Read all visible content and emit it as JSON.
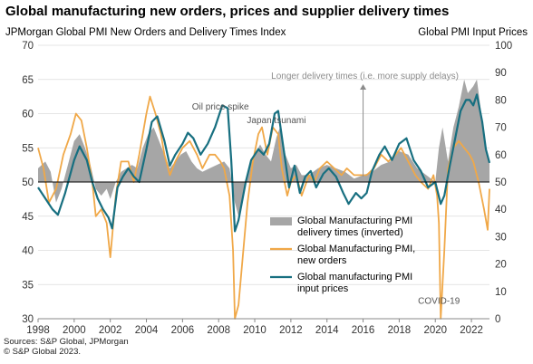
{
  "header": {
    "title": "Global manufacturing new orders, prices and supplier delivery times",
    "left_axis_title": "JPMorgan Global PMI New Orders and Delivery Times Index",
    "right_axis_title": "Global PMI Input Prices"
  },
  "footer": {
    "source_line1": "Sources: S&P Global, JPMorgan",
    "source_line2": "© S&P Global 2023."
  },
  "colors": {
    "delivery": "#a6a6a6",
    "new_orders": "#f0a848",
    "input_prices": "#176f80",
    "grid": "#dcdcdc",
    "annotation": "#8c8c8c"
  },
  "chart_data": {
    "type": "line",
    "title": "Global manufacturing new orders, prices and supplier delivery times",
    "x_ticks": [
      "1998",
      "2000",
      "2002",
      "2004",
      "2006",
      "2008",
      "2010",
      "2012",
      "2014",
      "2016",
      "2018",
      "2020",
      "2022"
    ],
    "xlim": [
      1998,
      2023
    ],
    "y_left": {
      "label": "JPMorgan Global PMI New Orders and Delivery Times Index",
      "lim": [
        30,
        70
      ],
      "ticks": [
        "30",
        "35",
        "40",
        "45",
        "50",
        "55",
        "60",
        "65",
        "70"
      ],
      "baseline": 50
    },
    "y_right": {
      "label": "Global PMI Input Prices",
      "lim": [
        0,
        100
      ],
      "ticks": [
        "0",
        "10",
        "20",
        "30",
        "40",
        "50",
        "60",
        "70",
        "80",
        "90",
        "100"
      ]
    },
    "legend": [
      {
        "text": "Global Manufacturing PMI delivery times (inverted)",
        "line1": "Global Manufacturing PMI",
        "line2": "delivery times (inverted)",
        "key": "delivery"
      },
      {
        "text": "Global Manufacturing PMI, new orders",
        "line1": "Global Manufacturing PMI,",
        "line2": "new orders",
        "key": "new_orders"
      },
      {
        "text": "Global manufacturing PMI input prices",
        "line1": "Global manufacturing PMI",
        "line2": "input prices",
        "key": "input_prices"
      }
    ],
    "annotations": [
      {
        "text": "Longer delivery times  (i.e. more supply delays)",
        "x": 2016,
        "y": 65.5,
        "arrow": true
      },
      {
        "text": "Oil price spike",
        "x": 2008.1,
        "y": 60.6
      },
      {
        "text": "Japan tsunami",
        "x": 2011.2,
        "y": 58.6
      },
      {
        "text": "COVID-19",
        "x": 2020.2,
        "y": 32.2
      }
    ],
    "series": [
      {
        "name": "Global Manufacturing PMI delivery times (inverted)",
        "type": "area",
        "axis": "left",
        "points": [
          [
            1998,
            52
          ],
          [
            1998.4,
            53
          ],
          [
            1998.7,
            51.5
          ],
          [
            1999,
            47
          ],
          [
            1999.3,
            49
          ],
          [
            1999.7,
            53
          ],
          [
            2000,
            56
          ],
          [
            2000.3,
            57
          ],
          [
            2000.6,
            55
          ],
          [
            2000.9,
            52.5
          ],
          [
            2001.2,
            49
          ],
          [
            2001.5,
            48
          ],
          [
            2001.8,
            49
          ],
          [
            2002,
            47.5
          ],
          [
            2002.3,
            50
          ],
          [
            2002.6,
            51.5
          ],
          [
            2002.9,
            52
          ],
          [
            2003.2,
            52.5
          ],
          [
            2003.5,
            52
          ],
          [
            2003.8,
            55
          ],
          [
            2004.1,
            57
          ],
          [
            2004.4,
            58
          ],
          [
            2004.7,
            56
          ],
          [
            2005,
            54
          ],
          [
            2005.3,
            52
          ],
          [
            2005.6,
            53
          ],
          [
            2005.9,
            54
          ],
          [
            2006.2,
            54.5
          ],
          [
            2006.5,
            53
          ],
          [
            2006.8,
            52
          ],
          [
            2007.1,
            51.5
          ],
          [
            2007.5,
            52
          ],
          [
            2007.9,
            52.5
          ],
          [
            2008.3,
            53
          ],
          [
            2008.6,
            52
          ],
          [
            2008.9,
            47
          ],
          [
            2009.1,
            45
          ],
          [
            2009.4,
            49
          ],
          [
            2009.7,
            52
          ],
          [
            2010.0,
            54
          ],
          [
            2010.3,
            55.5
          ],
          [
            2010.6,
            54
          ],
          [
            2010.9,
            53
          ],
          [
            2011.2,
            56.5
          ],
          [
            2011.4,
            58
          ],
          [
            2011.7,
            54
          ],
          [
            2012,
            52
          ],
          [
            2012.3,
            52.5
          ],
          [
            2012.6,
            51
          ],
          [
            2013,
            51
          ],
          [
            2013.5,
            52
          ],
          [
            2014,
            52.5
          ],
          [
            2014.5,
            52
          ],
          [
            2015,
            51.5
          ],
          [
            2015.5,
            50.5
          ],
          [
            2016,
            51
          ],
          [
            2016.5,
            51.5
          ],
          [
            2017,
            52.5
          ],
          [
            2017.5,
            53
          ],
          [
            2018,
            54.5
          ],
          [
            2018.5,
            54
          ],
          [
            2019,
            52
          ],
          [
            2019.5,
            51
          ],
          [
            2020,
            50
          ],
          [
            2020.2,
            55
          ],
          [
            2020.4,
            58
          ],
          [
            2020.7,
            53
          ],
          [
            2021,
            58
          ],
          [
            2021.3,
            61
          ],
          [
            2021.6,
            65
          ],
          [
            2021.8,
            63
          ],
          [
            2022.1,
            64
          ],
          [
            2022.3,
            65
          ],
          [
            2022.6,
            59
          ],
          [
            2022.8,
            55
          ],
          [
            2023,
            53
          ]
        ]
      },
      {
        "name": "Global Manufacturing PMI, new orders",
        "type": "line",
        "axis": "left",
        "points": [
          [
            1998,
            55
          ],
          [
            1998.3,
            52
          ],
          [
            1998.6,
            47
          ],
          [
            1999,
            49
          ],
          [
            1999.4,
            54
          ],
          [
            1999.8,
            57
          ],
          [
            2000.1,
            60
          ],
          [
            2000.4,
            59
          ],
          [
            2000.7,
            55
          ],
          [
            2001,
            50
          ],
          [
            2001.2,
            45
          ],
          [
            2001.5,
            46
          ],
          [
            2001.8,
            44
          ],
          [
            2002,
            39
          ],
          [
            2002.3,
            48
          ],
          [
            2002.6,
            53
          ],
          [
            2003,
            53
          ],
          [
            2003.3,
            50
          ],
          [
            2003.6,
            54
          ],
          [
            2004,
            60
          ],
          [
            2004.2,
            62.5
          ],
          [
            2004.5,
            60
          ],
          [
            2004.8,
            57
          ],
          [
            2005,
            54
          ],
          [
            2005.3,
            51
          ],
          [
            2005.6,
            53
          ],
          [
            2006,
            55
          ],
          [
            2006.4,
            56
          ],
          [
            2006.8,
            54
          ],
          [
            2007.1,
            52
          ],
          [
            2007.5,
            54
          ],
          [
            2007.8,
            54
          ],
          [
            2008.1,
            53
          ],
          [
            2008.3,
            52
          ],
          [
            2008.6,
            48
          ],
          [
            2008.8,
            40
          ],
          [
            2008.9,
            30
          ],
          [
            2009.1,
            32
          ],
          [
            2009.3,
            38
          ],
          [
            2009.6,
            47
          ],
          [
            2009.9,
            53
          ],
          [
            2010.2,
            57
          ],
          [
            2010.4,
            58
          ],
          [
            2010.7,
            54
          ],
          [
            2011,
            58
          ],
          [
            2011.3,
            57
          ],
          [
            2011.5,
            52
          ],
          [
            2011.8,
            48
          ],
          [
            2012,
            50
          ],
          [
            2012.3,
            51
          ],
          [
            2012.6,
            48
          ],
          [
            2013,
            51
          ],
          [
            2013.3,
            50
          ],
          [
            2013.6,
            52
          ],
          [
            2014,
            53
          ],
          [
            2014.4,
            52
          ],
          [
            2014.8,
            51
          ],
          [
            2015.1,
            52
          ],
          [
            2015.5,
            51
          ],
          [
            2015.9,
            51
          ],
          [
            2016.2,
            51
          ],
          [
            2016.6,
            52
          ],
          [
            2017,
            54
          ],
          [
            2017.4,
            53
          ],
          [
            2017.8,
            54
          ],
          [
            2018.1,
            55
          ],
          [
            2018.5,
            53
          ],
          [
            2018.9,
            51
          ],
          [
            2019.2,
            50
          ],
          [
            2019.6,
            49
          ],
          [
            2019.9,
            51
          ],
          [
            2020.1,
            48
          ],
          [
            2020.2,
            44
          ],
          [
            2020.3,
            30
          ],
          [
            2020.5,
            40
          ],
          [
            2020.7,
            52
          ],
          [
            2021,
            55
          ],
          [
            2021.3,
            56
          ],
          [
            2021.6,
            55
          ],
          [
            2021.9,
            54
          ],
          [
            2022.1,
            53
          ],
          [
            2022.4,
            50
          ],
          [
            2022.7,
            46
          ],
          [
            2022.9,
            43
          ],
          [
            2023,
            49
          ]
        ]
      },
      {
        "name": "Global manufacturing PMI input prices",
        "type": "line",
        "axis": "right",
        "points": [
          [
            1998,
            48
          ],
          [
            1998.4,
            44
          ],
          [
            1998.8,
            40
          ],
          [
            1999.1,
            38
          ],
          [
            1999.5,
            46
          ],
          [
            2000,
            58
          ],
          [
            2000.3,
            63
          ],
          [
            2000.7,
            58
          ],
          [
            2001,
            50
          ],
          [
            2001.3,
            44
          ],
          [
            2001.6,
            40
          ],
          [
            2001.9,
            37
          ],
          [
            2002.1,
            33
          ],
          [
            2002.4,
            48
          ],
          [
            2002.7,
            52
          ],
          [
            2003,
            55
          ],
          [
            2003.3,
            52
          ],
          [
            2003.6,
            50
          ],
          [
            2004,
            62
          ],
          [
            2004.3,
            72
          ],
          [
            2004.6,
            74
          ],
          [
            2005,
            65
          ],
          [
            2005.3,
            56
          ],
          [
            2005.6,
            60
          ],
          [
            2006,
            64
          ],
          [
            2006.3,
            68
          ],
          [
            2006.6,
            66
          ],
          [
            2007,
            60
          ],
          [
            2007.4,
            64
          ],
          [
            2007.8,
            70
          ],
          [
            2008.2,
            78
          ],
          [
            2008.5,
            77
          ],
          [
            2008.7,
            58
          ],
          [
            2008.9,
            32
          ],
          [
            2009.1,
            36
          ],
          [
            2009.5,
            50
          ],
          [
            2009.8,
            58
          ],
          [
            2010.2,
            62
          ],
          [
            2010.5,
            60
          ],
          [
            2010.8,
            64
          ],
          [
            2011.1,
            75
          ],
          [
            2011.3,
            76
          ],
          [
            2011.6,
            62
          ],
          [
            2011.9,
            48
          ],
          [
            2012.2,
            56
          ],
          [
            2012.5,
            46
          ],
          [
            2012.8,
            52
          ],
          [
            2013.1,
            54
          ],
          [
            2013.4,
            48
          ],
          [
            2013.8,
            53
          ],
          [
            2014.1,
            55
          ],
          [
            2014.5,
            52
          ],
          [
            2014.9,
            46
          ],
          [
            2015.2,
            42
          ],
          [
            2015.6,
            46
          ],
          [
            2015.9,
            44
          ],
          [
            2016.2,
            46
          ],
          [
            2016.5,
            54
          ],
          [
            2016.9,
            60
          ],
          [
            2017.2,
            63
          ],
          [
            2017.6,
            58
          ],
          [
            2018,
            64
          ],
          [
            2018.4,
            66
          ],
          [
            2018.8,
            58
          ],
          [
            2019.2,
            54
          ],
          [
            2019.6,
            48
          ],
          [
            2020,
            50
          ],
          [
            2020.3,
            42
          ],
          [
            2020.5,
            45
          ],
          [
            2020.8,
            56
          ],
          [
            2021.1,
            66
          ],
          [
            2021.4,
            76
          ],
          [
            2021.7,
            80
          ],
          [
            2021.9,
            80
          ],
          [
            2022.1,
            78
          ],
          [
            2022.3,
            82
          ],
          [
            2022.6,
            72
          ],
          [
            2022.8,
            62
          ],
          [
            2023,
            57
          ]
        ]
      }
    ]
  }
}
